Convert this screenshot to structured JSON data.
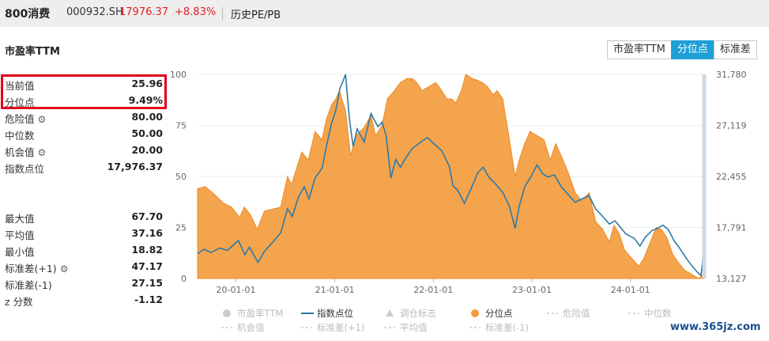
{
  "header": {
    "name": "800消费",
    "code": "000932.SH",
    "price": "17976.37",
    "change": "+8.83%",
    "link": "历史PE/PB"
  },
  "section_title": "市盈率TTM",
  "view_buttons": [
    {
      "label": "市盈率TTM",
      "active": false
    },
    {
      "label": "分位点",
      "active": true
    },
    {
      "label": "标准差",
      "active": false
    }
  ],
  "stats": [
    {
      "label": "当前值",
      "value": "25.96",
      "gear": false
    },
    {
      "label": "分位点",
      "value": "9.49%",
      "gear": false
    },
    {
      "label": "危险值",
      "value": "80.00",
      "gear": true
    },
    {
      "label": "中位数",
      "value": "50.00",
      "gear": false
    },
    {
      "label": "机会值",
      "value": "20.00",
      "gear": true
    },
    {
      "label": "指数点位",
      "value": "17,976.37",
      "gear": false
    },
    {
      "label": "最大值",
      "value": "67.70",
      "gear": false
    },
    {
      "label": "平均值",
      "value": "37.16",
      "gear": false
    },
    {
      "label": "最小值",
      "value": "18.82",
      "gear": false
    },
    {
      "label": "标准差(+1)",
      "value": "47.17",
      "gear": true
    },
    {
      "label": "标准差(-1)",
      "value": "27.15",
      "gear": false
    },
    {
      "label": "z 分数",
      "value": "-1.12",
      "gear": false
    }
  ],
  "colors": {
    "percentile": "#f39a3a",
    "index": "#2c7aa8",
    "accent_button": "#1e9fd6",
    "highlight_box": "#e0001b"
  },
  "legend": [
    {
      "label": "市盈率TTM",
      "type": "dot",
      "active": false
    },
    {
      "label": "指数点位",
      "type": "line",
      "active": true
    },
    {
      "label": "调仓标志",
      "type": "triangle",
      "active": false
    },
    {
      "label": "分位点",
      "type": "dot",
      "active": true
    },
    {
      "label": "危险值",
      "type": "dash",
      "active": false
    },
    {
      "label": "中位数",
      "type": "dash",
      "active": false
    },
    {
      "label": "机会值",
      "type": "dash",
      "active": false
    },
    {
      "label": "标准差(+1)",
      "type": "dash",
      "active": false
    },
    {
      "label": "平均值",
      "type": "dash",
      "active": false
    },
    {
      "label": "标准差(-1)",
      "type": "dash",
      "active": false
    }
  ],
  "watermark": "www.365jz.com",
  "chart_data": {
    "type": "area",
    "x_ticks": [
      "20-01-01",
      "21-01-01",
      "22-01-01",
      "23-01-01",
      "24-01-01"
    ],
    "x_range": [
      "2019-08-12",
      "2024-09-30"
    ],
    "y_left_ticks": [
      "0",
      "25",
      "50",
      "75",
      "100"
    ],
    "y_left_range": [
      0,
      100
    ],
    "y_right_ticks": [
      "13,127",
      "17,791",
      "22,455",
      "27,119",
      "31,780"
    ],
    "y_right_range": [
      13127,
      31780
    ],
    "series": [
      {
        "name": "分位点",
        "axis": "left",
        "style": "area",
        "points": [
          [
            "2019-08-12",
            44
          ],
          [
            "2019-09-10",
            45
          ],
          [
            "2019-10-15",
            41
          ],
          [
            "2019-11-15",
            37
          ],
          [
            "2019-12-15",
            35
          ],
          [
            "2020-01-15",
            30
          ],
          [
            "2020-02-01",
            35
          ],
          [
            "2020-02-25",
            31
          ],
          [
            "2020-03-20",
            24
          ],
          [
            "2020-04-15",
            33
          ],
          [
            "2020-05-15",
            34
          ],
          [
            "2020-06-15",
            35
          ],
          [
            "2020-07-10",
            50
          ],
          [
            "2020-07-25",
            46
          ],
          [
            "2020-08-15",
            55
          ],
          [
            "2020-09-01",
            62
          ],
          [
            "2020-09-25",
            58
          ],
          [
            "2020-10-20",
            72
          ],
          [
            "2020-11-15",
            68
          ],
          [
            "2020-12-01",
            78
          ],
          [
            "2020-12-20",
            85
          ],
          [
            "2021-01-05",
            88
          ],
          [
            "2021-01-18",
            92
          ],
          [
            "2021-02-10",
            82
          ],
          [
            "2021-03-01",
            60
          ],
          [
            "2021-03-20",
            70
          ],
          [
            "2021-04-20",
            74
          ],
          [
            "2021-05-15",
            80
          ],
          [
            "2021-06-01",
            70
          ],
          [
            "2021-06-25",
            75
          ],
          [
            "2021-07-15",
            88
          ],
          [
            "2021-08-10",
            92
          ],
          [
            "2021-09-01",
            96
          ],
          [
            "2021-09-25",
            98
          ],
          [
            "2021-10-15",
            98
          ],
          [
            "2021-11-01",
            96
          ],
          [
            "2021-11-20",
            92
          ],
          [
            "2021-12-15",
            94
          ],
          [
            "2022-01-10",
            96
          ],
          [
            "2022-02-01",
            92
          ],
          [
            "2022-02-20",
            88
          ],
          [
            "2022-03-10",
            88
          ],
          [
            "2022-03-25",
            86
          ],
          [
            "2022-04-15",
            92
          ],
          [
            "2022-05-01",
            100
          ],
          [
            "2022-05-25",
            98
          ],
          [
            "2022-06-15",
            97
          ],
          [
            "2022-07-01",
            96
          ],
          [
            "2022-07-20",
            94
          ],
          [
            "2022-08-10",
            90
          ],
          [
            "2022-08-25",
            92
          ],
          [
            "2022-09-15",
            88
          ],
          [
            "2022-10-10",
            68
          ],
          [
            "2022-10-31",
            50
          ],
          [
            "2022-11-15",
            58
          ],
          [
            "2022-12-05",
            66
          ],
          [
            "2022-12-25",
            72
          ],
          [
            "2023-01-20",
            70
          ],
          [
            "2023-02-15",
            68
          ],
          [
            "2023-03-10",
            58
          ],
          [
            "2023-03-30",
            66
          ],
          [
            "2023-04-20",
            60
          ],
          [
            "2023-05-15",
            52
          ],
          [
            "2023-06-10",
            42
          ],
          [
            "2023-07-05",
            38
          ],
          [
            "2023-08-01",
            42
          ],
          [
            "2023-08-25",
            28
          ],
          [
            "2023-09-20",
            24
          ],
          [
            "2023-10-15",
            18
          ],
          [
            "2023-11-01",
            26
          ],
          [
            "2023-11-20",
            22
          ],
          [
            "2023-12-10",
            14
          ],
          [
            "2024-01-05",
            10
          ],
          [
            "2024-02-01",
            6
          ],
          [
            "2024-02-20",
            10
          ],
          [
            "2024-03-15",
            18
          ],
          [
            "2024-04-05",
            25
          ],
          [
            "2024-04-25",
            24
          ],
          [
            "2024-05-15",
            20
          ],
          [
            "2024-06-05",
            12
          ],
          [
            "2024-06-25",
            8
          ],
          [
            "2024-07-20",
            4
          ],
          [
            "2024-08-15",
            2
          ],
          [
            "2024-09-10",
            0
          ],
          [
            "2024-09-25",
            2
          ],
          [
            "2024-09-30",
            9.49
          ]
        ]
      },
      {
        "name": "指数点位",
        "axis": "right",
        "style": "line",
        "points": [
          [
            "2019-08-12",
            15400
          ],
          [
            "2019-09-05",
            15800
          ],
          [
            "2019-10-01",
            15500
          ],
          [
            "2019-11-01",
            15900
          ],
          [
            "2019-12-01",
            15700
          ],
          [
            "2020-01-10",
            16600
          ],
          [
            "2020-02-03",
            15300
          ],
          [
            "2020-02-20",
            16000
          ],
          [
            "2020-03-23",
            14600
          ],
          [
            "2020-04-15",
            15600
          ],
          [
            "2020-05-15",
            16400
          ],
          [
            "2020-06-15",
            17300
          ],
          [
            "2020-07-10",
            19500
          ],
          [
            "2020-07-28",
            18800
          ],
          [
            "2020-08-20",
            20600
          ],
          [
            "2020-09-10",
            21500
          ],
          [
            "2020-09-28",
            20400
          ],
          [
            "2020-10-20",
            22300
          ],
          [
            "2020-11-15",
            23200
          ],
          [
            "2020-12-01",
            25200
          ],
          [
            "2020-12-20",
            27300
          ],
          [
            "2021-01-05",
            28500
          ],
          [
            "2021-01-20",
            30500
          ],
          [
            "2021-02-01",
            31200
          ],
          [
            "2021-02-10",
            31780
          ],
          [
            "2021-02-25",
            27500
          ],
          [
            "2021-03-10",
            25200
          ],
          [
            "2021-03-25",
            26800
          ],
          [
            "2021-04-20",
            25600
          ],
          [
            "2021-05-15",
            28200
          ],
          [
            "2021-06-10",
            27000
          ],
          [
            "2021-06-25",
            27400
          ],
          [
            "2021-07-10",
            26200
          ],
          [
            "2021-07-28",
            22300
          ],
          [
            "2021-08-15",
            24000
          ],
          [
            "2021-09-01",
            23300
          ],
          [
            "2021-09-20",
            24100
          ],
          [
            "2021-10-15",
            25000
          ],
          [
            "2021-11-10",
            25500
          ],
          [
            "2021-12-10",
            26000
          ],
          [
            "2022-01-05",
            25400
          ],
          [
            "2022-02-01",
            24800
          ],
          [
            "2022-03-01",
            23400
          ],
          [
            "2022-03-15",
            21600
          ],
          [
            "2022-04-01",
            21200
          ],
          [
            "2022-04-26",
            20000
          ],
          [
            "2022-05-20",
            21300
          ],
          [
            "2022-06-15",
            22800
          ],
          [
            "2022-07-05",
            23300
          ],
          [
            "2022-07-25",
            22400
          ],
          [
            "2022-08-15",
            21900
          ],
          [
            "2022-09-15",
            21000
          ],
          [
            "2022-10-10",
            19700
          ],
          [
            "2022-10-31",
            17700
          ],
          [
            "2022-11-15",
            19700
          ],
          [
            "2022-12-05",
            21500
          ],
          [
            "2022-12-30",
            22500
          ],
          [
            "2023-01-20",
            23500
          ],
          [
            "2023-02-10",
            22700
          ],
          [
            "2023-03-01",
            22400
          ],
          [
            "2023-03-25",
            22600
          ],
          [
            "2023-04-20",
            21500
          ],
          [
            "2023-05-15",
            20800
          ],
          [
            "2023-06-10",
            20100
          ],
          [
            "2023-07-05",
            20400
          ],
          [
            "2023-08-01",
            20700
          ],
          [
            "2023-08-25",
            19500
          ],
          [
            "2023-09-20",
            18800
          ],
          [
            "2023-10-15",
            18100
          ],
          [
            "2023-11-05",
            18400
          ],
          [
            "2023-11-25",
            17800
          ],
          [
            "2023-12-15",
            17200
          ],
          [
            "2024-01-15",
            16800
          ],
          [
            "2024-02-05",
            16100
          ],
          [
            "2024-02-25",
            16900
          ],
          [
            "2024-03-20",
            17500
          ],
          [
            "2024-04-10",
            17700
          ],
          [
            "2024-04-30",
            18000
          ],
          [
            "2024-05-20",
            17600
          ],
          [
            "2024-06-10",
            16600
          ],
          [
            "2024-07-01",
            15900
          ],
          [
            "2024-07-25",
            15000
          ],
          [
            "2024-08-15",
            14300
          ],
          [
            "2024-09-05",
            13700
          ],
          [
            "2024-09-18",
            13400
          ],
          [
            "2024-09-24",
            14600
          ],
          [
            "2024-09-30",
            17976
          ]
        ]
      }
    ]
  }
}
